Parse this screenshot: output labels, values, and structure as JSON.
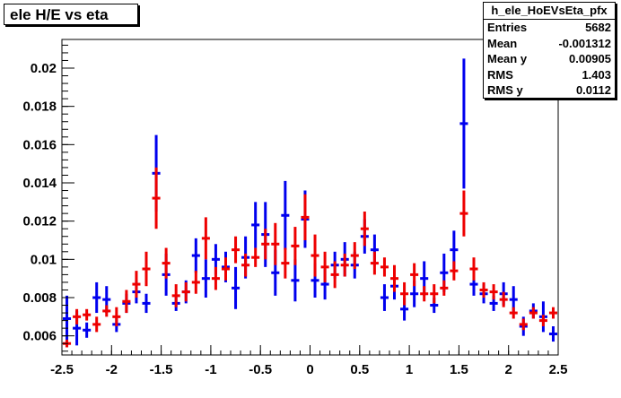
{
  "title": "ele H/E vs eta",
  "stats": {
    "name": "h_ele_HoEVsEta_pfx",
    "rows": [
      {
        "label": "Entries",
        "value": "5682"
      },
      {
        "label": "Mean",
        "value": "-0.001312"
      },
      {
        "label": "Mean y",
        "value": "0.00905"
      },
      {
        "label": "RMS",
        "value": "1.403"
      },
      {
        "label": "RMS y",
        "value": "0.0112"
      }
    ]
  },
  "chart_data": {
    "type": "scatter",
    "title": "ele H/E vs eta",
    "xlabel": "",
    "ylabel": "",
    "xlim": [
      -2.5,
      2.5
    ],
    "ylim": [
      0.005,
      0.0215
    ],
    "xticks": [
      "-2.5",
      "-2",
      "-1.5",
      "-1",
      "-0.5",
      "0",
      "0.5",
      "1",
      "1.5",
      "2",
      "2.5"
    ],
    "yticks": [
      "0.006",
      "0.008",
      "0.01",
      "0.012",
      "0.014",
      "0.016",
      "0.018",
      "0.02"
    ],
    "grid": false,
    "bin_width": 0.1,
    "colors": {
      "blue": "#0000ee",
      "red": "#ee0000"
    },
    "series": [
      {
        "color": "blue",
        "x": [
          -2.45,
          -2.35,
          -2.25,
          -2.15,
          -2.05,
          -1.95,
          -1.85,
          -1.75,
          -1.65,
          -1.55,
          -1.45,
          -1.35,
          -1.25,
          -1.15,
          -1.05,
          -0.95,
          -0.85,
          -0.75,
          -0.65,
          -0.55,
          -0.45,
          -0.35,
          -0.25,
          -0.15,
          -0.05,
          0.05,
          0.15,
          0.25,
          0.35,
          0.45,
          0.55,
          0.65,
          0.75,
          0.85,
          0.95,
          1.05,
          1.15,
          1.25,
          1.35,
          1.45,
          1.55,
          1.65,
          1.75,
          1.85,
          1.95,
          2.05,
          2.15,
          2.25,
          2.35,
          2.45
        ],
        "y": [
          0.0069,
          0.0064,
          0.0063,
          0.008,
          0.0079,
          0.0066,
          0.0077,
          0.0083,
          0.0077,
          0.0145,
          0.0092,
          0.0077,
          0.0083,
          0.0102,
          0.009,
          0.01,
          0.0096,
          0.0085,
          0.0101,
          0.0118,
          0.0113,
          0.0093,
          0.0123,
          0.0089,
          0.0121,
          0.0089,
          0.0087,
          0.0097,
          0.01,
          0.0097,
          0.0112,
          0.0105,
          0.008,
          0.0086,
          0.0074,
          0.0082,
          0.009,
          0.0076,
          0.0093,
          0.0105,
          0.0171,
          0.0087,
          0.0082,
          0.0077,
          0.0082,
          0.0079,
          0.0065,
          0.0073,
          0.007,
          0.0061
        ],
        "err": [
          0.0012,
          0.0009,
          0.0004,
          0.0008,
          0.0007,
          0.0004,
          0.0005,
          0.0006,
          0.0005,
          0.002,
          0.0011,
          0.0004,
          0.0006,
          0.0009,
          0.001,
          0.0008,
          0.0008,
          0.0011,
          0.0011,
          0.0012,
          0.0017,
          0.0012,
          0.0018,
          0.0011,
          0.0015,
          0.0009,
          0.0008,
          0.0007,
          0.0009,
          0.0007,
          0.0009,
          0.0008,
          0.0007,
          0.0007,
          0.0006,
          0.0007,
          0.0009,
          0.0004,
          0.001,
          0.001,
          0.0034,
          0.0006,
          0.0005,
          0.0004,
          0.0006,
          0.0007,
          0.0005,
          0.0004,
          0.0008,
          0.0004
        ]
      },
      {
        "color": "red",
        "x": [
          -2.45,
          -2.35,
          -2.25,
          -2.15,
          -2.05,
          -1.95,
          -1.85,
          -1.75,
          -1.65,
          -1.55,
          -1.45,
          -1.35,
          -1.25,
          -1.15,
          -1.05,
          -0.95,
          -0.85,
          -0.75,
          -0.65,
          -0.55,
          -0.45,
          -0.35,
          -0.25,
          -0.15,
          -0.05,
          0.05,
          0.15,
          0.25,
          0.35,
          0.45,
          0.55,
          0.65,
          0.75,
          0.85,
          0.95,
          1.05,
          1.15,
          1.25,
          1.35,
          1.45,
          1.55,
          1.65,
          1.75,
          1.85,
          1.95,
          2.05,
          2.15,
          2.25,
          2.35,
          2.45
        ],
        "y": [
          0.0056,
          0.007,
          0.0071,
          0.0066,
          0.0073,
          0.007,
          0.0078,
          0.0087,
          0.0095,
          0.0132,
          0.0098,
          0.0081,
          0.0083,
          0.0088,
          0.0111,
          0.009,
          0.0095,
          0.0105,
          0.0097,
          0.0101,
          0.0108,
          0.0108,
          0.0098,
          0.0107,
          0.0122,
          0.0102,
          0.0096,
          0.0092,
          0.0097,
          0.0102,
          0.0116,
          0.0098,
          0.0096,
          0.009,
          0.0082,
          0.0092,
          0.0082,
          0.0082,
          0.0085,
          0.0094,
          0.0124,
          0.0095,
          0.0084,
          0.0083,
          0.0079,
          0.0072,
          0.0066,
          0.0072,
          0.0068,
          0.0072
        ],
        "err": [
          0.0002,
          0.0004,
          0.0003,
          0.0004,
          0.0003,
          0.0005,
          0.0006,
          0.0007,
          0.0009,
          0.0016,
          0.0008,
          0.0006,
          0.0005,
          0.0006,
          0.0011,
          0.0006,
          0.0006,
          0.0007,
          0.0006,
          0.0005,
          0.0008,
          0.0011,
          0.0008,
          0.001,
          0.0012,
          0.0011,
          0.0008,
          0.0007,
          0.0006,
          0.0007,
          0.0009,
          0.0006,
          0.0005,
          0.0007,
          0.0006,
          0.0006,
          0.0004,
          0.0005,
          0.0004,
          0.0005,
          0.0012,
          0.0006,
          0.0004,
          0.0004,
          0.0004,
          0.0003,
          0.0003,
          0.0003,
          0.0003,
          0.0003
        ]
      }
    ]
  }
}
